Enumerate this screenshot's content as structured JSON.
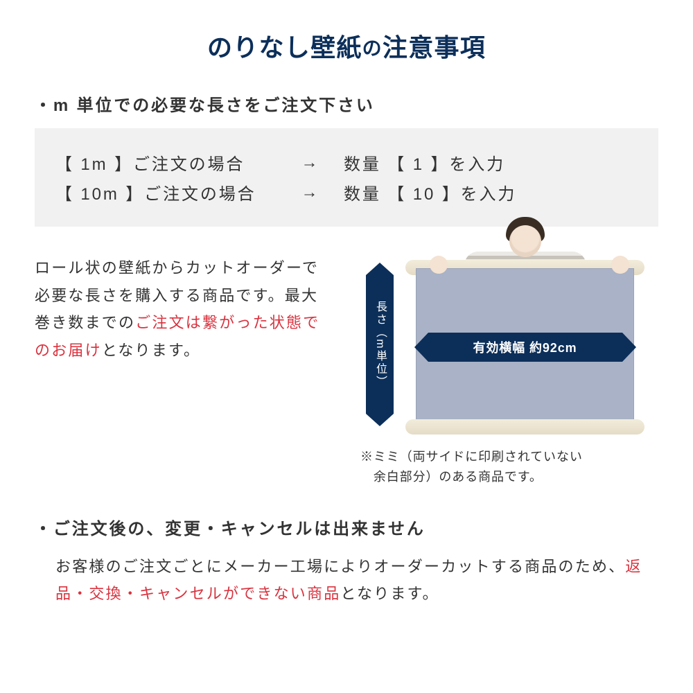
{
  "title": {
    "full": "のりなし壁紙の注意事項",
    "part1": "のりなし壁紙",
    "no": "の",
    "part2": "注意事項",
    "color": "#0c2f5a",
    "fontsize_main": 36,
    "fontsize_no": 28
  },
  "section1": {
    "heading": "・m 単位での必要な長さをご注文下さい",
    "box": {
      "background": "#f1f1f1",
      "rows": [
        {
          "lhs": "【 1m 】ご注文の場合",
          "arrow": "→",
          "rhs": "数量 【 1 】を入力"
        },
        {
          "lhs": "【 10m 】ご注文の場合",
          "arrow": "→",
          "rhs": "数量 【 10 】を入力"
        }
      ]
    }
  },
  "mid": {
    "text_plain_1": "ロール状の壁紙からカットオーダーで必要な長さを購入する商品です。最大巻き数までの",
    "text_red": "ご注文は繋がった状態でのお届け",
    "text_plain_2": "となります。",
    "red_color": "#d9333f"
  },
  "diagram": {
    "vertical_label": "長さ（m単位）",
    "horizontal_label": "有効横幅 約92cm",
    "arrow_color": "#0c2f5a",
    "sheet_color": "#a9b2c6",
    "roll_color": "#e9e1cc",
    "note_line1": "※ミミ（両サイドに印刷されていない",
    "note_line2": "　余白部分）のある商品です。"
  },
  "section2": {
    "heading": "・ご注文後の、変更・キャンセルは出来ません",
    "body_1": "お客様のご注文ごとにメーカー工場によりオーダーカットする商品のため、",
    "body_red": "返品・交換・キャンセルができない商品",
    "body_2": "となります。"
  },
  "typography": {
    "body_fontsize": 22,
    "heading_fontsize": 24,
    "note_fontsize": 18,
    "line_height": 1.8,
    "letter_spacing": "0.1em",
    "text_color": "#333333",
    "background_color": "#ffffff"
  }
}
